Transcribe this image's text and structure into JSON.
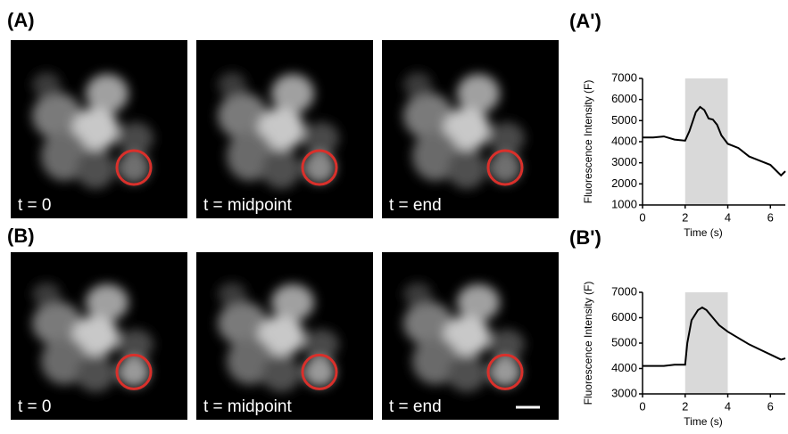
{
  "figure": {
    "panel_labels": [
      "(A)",
      "(B)"
    ],
    "image_labels": [
      [
        "t = 0",
        "t = midpoint",
        "t = end"
      ],
      [
        "t = 0",
        "t = midpoint",
        "t = end"
      ]
    ]
  },
  "chart_data": [
    {
      "type": "line",
      "panel_label": "(A')",
      "ylabel": "Fluorescence Intensity (F)",
      "xlabel": "Time (s)",
      "x": [
        0,
        0.5,
        1,
        1.5,
        2,
        2.2,
        2.5,
        2.7,
        2.9,
        3.1,
        3.3,
        3.5,
        3.7,
        4,
        4.5,
        5,
        5.5,
        6,
        6.3,
        6.5,
        6.7
      ],
      "values": [
        4200,
        4200,
        4250,
        4100,
        4050,
        4500,
        5400,
        5650,
        5500,
        5100,
        5050,
        4800,
        4300,
        3900,
        3700,
        3300,
        3100,
        2900,
        2600,
        2400,
        2600
      ],
      "color": "#000000",
      "highlight": [
        2,
        4
      ],
      "highlight_color": "#d9d9d9",
      "xlim": [
        0,
        6.7
      ],
      "xticks": [
        0,
        2,
        4,
        6
      ],
      "ylim": [
        1000,
        7000
      ],
      "yticks": [
        1000,
        2000,
        3000,
        4000,
        5000,
        6000,
        7000
      ]
    },
    {
      "type": "line",
      "panel_label": "(B')",
      "ylabel": "Fluorescence Intensity (F)",
      "xlabel": "Time (s)",
      "x": [
        0,
        1,
        1.5,
        2,
        2.1,
        2.3,
        2.6,
        2.8,
        3,
        3.3,
        3.6,
        4,
        4.5,
        5,
        5.5,
        6,
        6.5,
        6.7
      ],
      "values": [
        4100,
        4100,
        4150,
        4150,
        5000,
        5900,
        6300,
        6400,
        6300,
        6000,
        5700,
        5450,
        5200,
        4950,
        4750,
        4550,
        4350,
        4400
      ],
      "color": "#000000",
      "highlight": [
        2,
        4
      ],
      "highlight_color": "#d9d9d9",
      "xlim": [
        0,
        6.7
      ],
      "xticks": [
        0,
        2,
        4,
        6
      ],
      "ylim": [
        3000,
        7000
      ],
      "yticks": [
        3000,
        4000,
        5000,
        6000,
        7000
      ]
    }
  ]
}
